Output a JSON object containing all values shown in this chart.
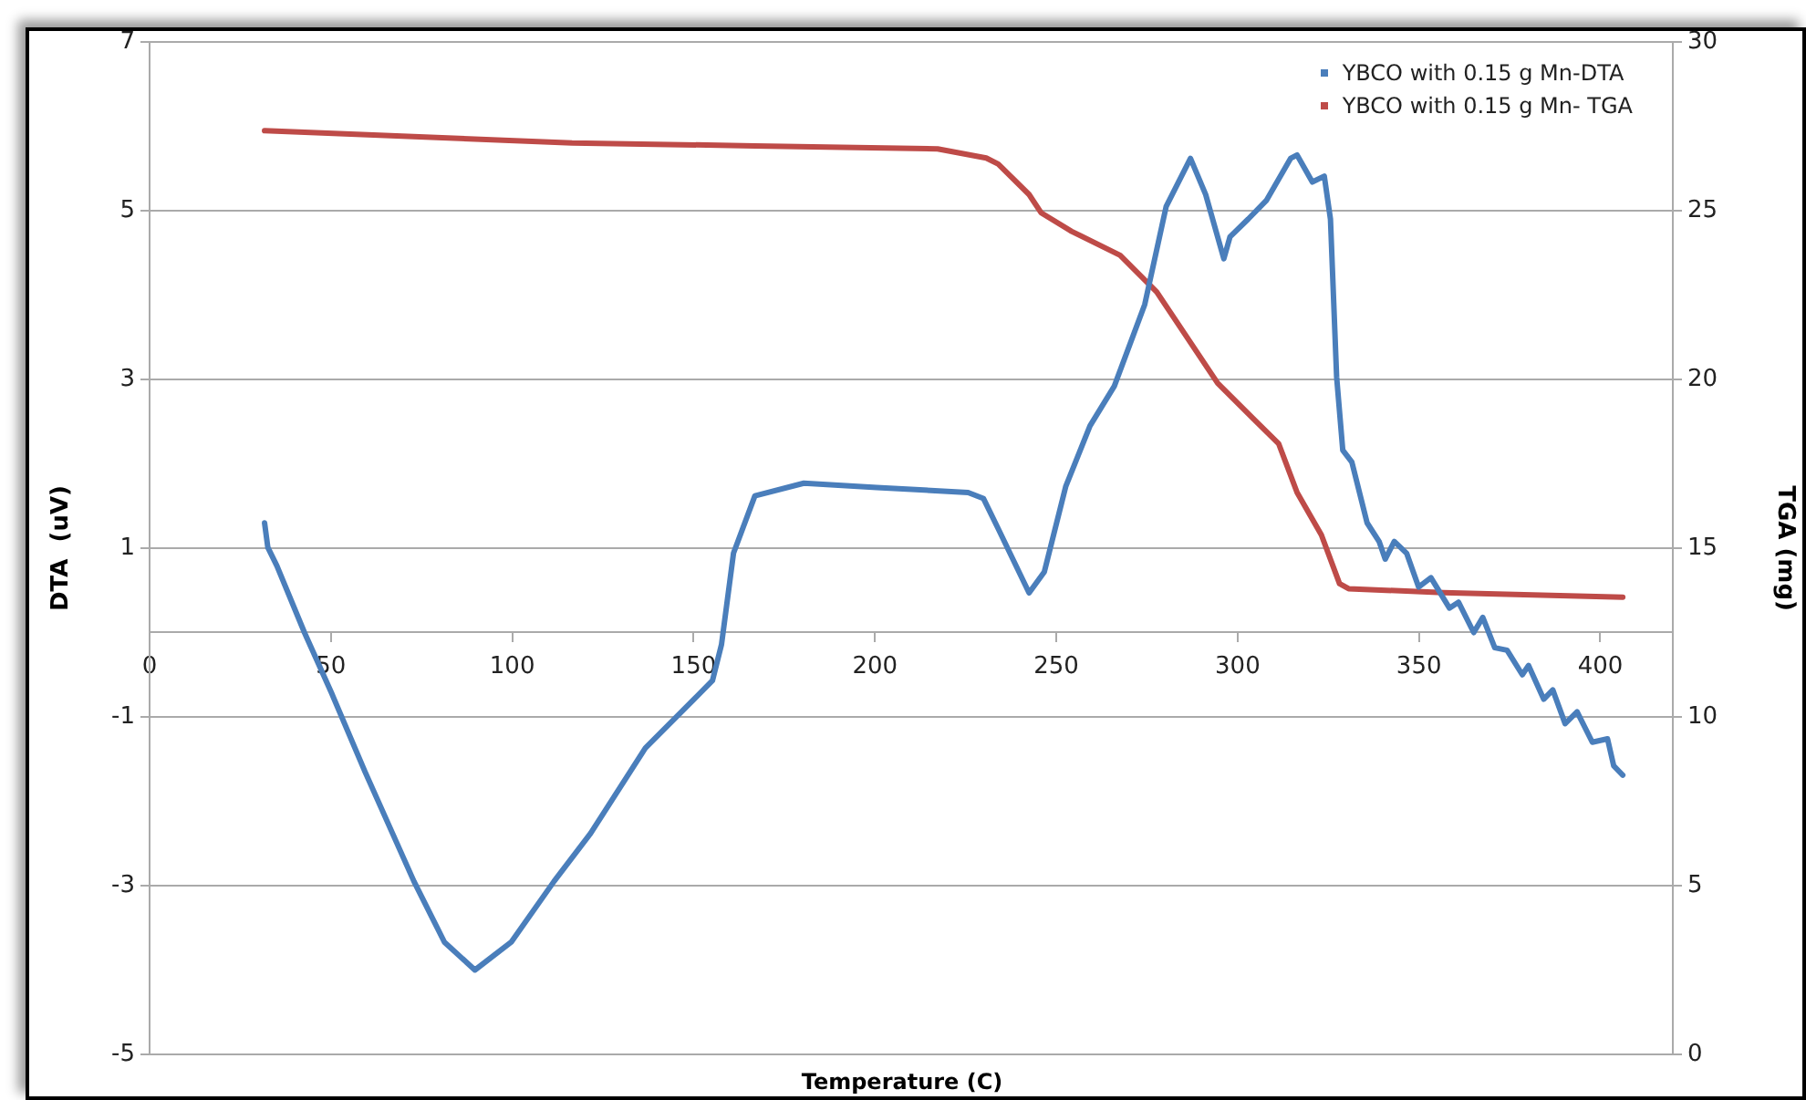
{
  "chart_data": {
    "type": "line",
    "xlabel": "Temperature (C)",
    "ylabel": "DTA  (uV)",
    "y2label": "TGA (mg)",
    "xlim": [
      0,
      420
    ],
    "xticks": [
      0,
      50,
      100,
      150,
      200,
      250,
      300,
      350,
      400
    ],
    "ylim": [
      -5,
      7
    ],
    "yticks": [
      -5,
      -3,
      -1,
      1,
      3,
      5,
      7
    ],
    "y2lim": [
      0,
      30
    ],
    "y2ticks": [
      0,
      5,
      10,
      15,
      20,
      25,
      30
    ],
    "grid": "y",
    "legend": "top right",
    "marker": "none",
    "line_style": "solid",
    "series": [
      {
        "name": "YBCO with 0.15 g Mn-DTA",
        "color": "#4a7ebb",
        "x": [
          31.7,
          32.6,
          35.1,
          42.7,
          50.2,
          59.4,
          72.9,
          81.3,
          89.7,
          99.7,
          111.5,
          121.6,
          136.7,
          155.2,
          157.7,
          161,
          166.9,
          180.4,
          200.5,
          225.7,
          229.9,
          234,
          242.5,
          246.7,
          252.6,
          259.3,
          266,
          274.4,
          280.3,
          287,
          291.2,
          296.2,
          297.9,
          302.9,
          307.9,
          314.6,
          316.4,
          320.6,
          323.9,
          325.6,
          327.3,
          329,
          331.5,
          335.7,
          339,
          340.7,
          343.2,
          346.6,
          349.9,
          353.3,
          358.4,
          360.9,
          365.1,
          367.6,
          370.9,
          374.3,
          378.5,
          380.2,
          384.4,
          386.9,
          390.3,
          393.6,
          397.8,
          402,
          403.7,
          406.2
        ],
        "values": [
          1.3,
          1.01,
          0.79,
          0.0,
          -0.72,
          -1.65,
          -2.95,
          -3.67,
          -4.0,
          -3.67,
          -2.95,
          -2.38,
          -1.37,
          -0.57,
          -0.14,
          0.94,
          1.62,
          1.77,
          1.72,
          1.66,
          1.59,
          1.23,
          0.47,
          0.72,
          1.73,
          2.45,
          2.92,
          3.89,
          5.05,
          5.62,
          5.19,
          4.43,
          4.69,
          4.9,
          5.12,
          5.62,
          5.66,
          5.34,
          5.41,
          4.9,
          3.03,
          2.16,
          2.02,
          1.3,
          1.08,
          0.87,
          1.08,
          0.94,
          0.54,
          0.65,
          0.29,
          0.36,
          0.0,
          0.18,
          -0.18,
          -0.21,
          -0.5,
          -0.39,
          -0.79,
          -0.68,
          -1.08,
          -0.94,
          -1.3,
          -1.26,
          -1.58,
          -1.69
        ]
      },
      {
        "name": "YBCO with 0.15 g Mn- TGA",
        "color": "#be4b48",
        "axis": "y2",
        "x": [
          31.7,
          116.5,
          166.9,
          217.3,
          230.7,
          234,
          242.5,
          245.8,
          254.2,
          267.6,
          277.7,
          294.5,
          304.6,
          311.3,
          316.4,
          323.1,
          328.1,
          330.6,
          356.7,
          406.2
        ],
        "values": [
          27.37,
          27.01,
          26.92,
          26.83,
          26.56,
          26.38,
          25.48,
          24.94,
          24.39,
          23.68,
          22.59,
          19.89,
          18.81,
          18.1,
          16.65,
          15.39,
          13.95,
          13.8,
          13.68,
          13.55
        ]
      }
    ]
  }
}
